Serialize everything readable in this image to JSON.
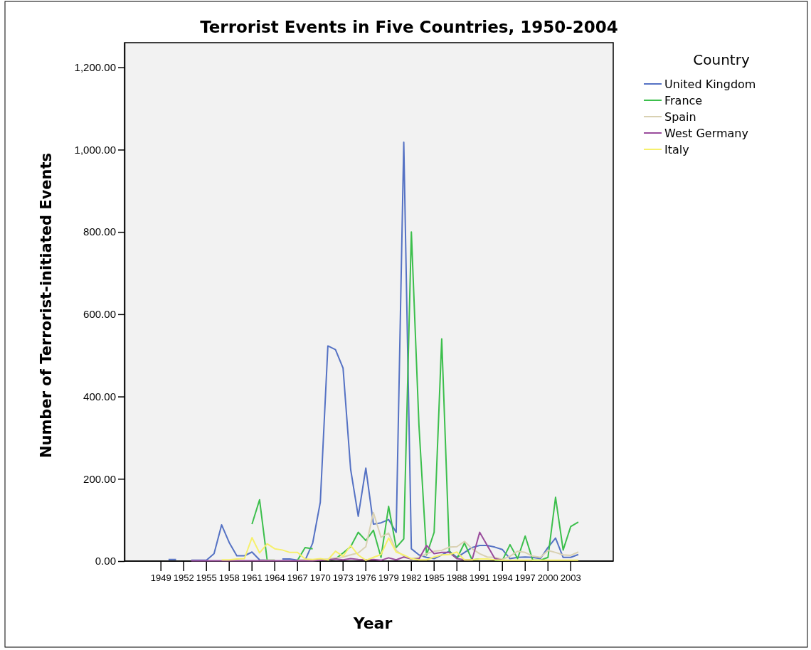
{
  "chart_data": {
    "type": "line",
    "title": "Terrorist Events in Five Countries, 1950-2004",
    "xlabel": "Year",
    "ylabel": "Number of Terrorist-initiated Events",
    "legend_title": "Country",
    "x": [
      1950,
      1951,
      1952,
      1953,
      1954,
      1955,
      1956,
      1957,
      1958,
      1959,
      1960,
      1961,
      1962,
      1963,
      1964,
      1965,
      1966,
      1967,
      1968,
      1969,
      1970,
      1971,
      1972,
      1973,
      1974,
      1975,
      1976,
      1977,
      1978,
      1979,
      1980,
      1981,
      1982,
      1983,
      1984,
      1985,
      1986,
      1987,
      1988,
      1989,
      1990,
      1991,
      1992,
      1993,
      1994,
      1995,
      1996,
      1997,
      1998,
      1999,
      2000,
      2001,
      2002,
      2003,
      2004
    ],
    "xlim": [
      1944.2,
      2008.6
    ],
    "xticks": [
      1949,
      1952,
      1955,
      1958,
      1961,
      1964,
      1967,
      1970,
      1973,
      1976,
      1979,
      1982,
      1985,
      1988,
      1991,
      1994,
      1997,
      2000,
      2003
    ],
    "ylim": [
      0,
      1260
    ],
    "yticks": [
      {
        "value": 0,
        "label": "0.00"
      },
      {
        "value": 200,
        "label": "200.00"
      },
      {
        "value": 400,
        "label": "400.00"
      },
      {
        "value": 600,
        "label": "600.00"
      },
      {
        "value": 800,
        "label": "800.00"
      },
      {
        "value": 1000,
        "label": "1,000.00"
      },
      {
        "value": 1200,
        "label": "1,200.00"
      }
    ],
    "grid": false,
    "legend": "right",
    "marker": "none",
    "line_style": "solid",
    "series": [
      {
        "name": "United Kingdom",
        "color": "#5572c4",
        "values": [
          4,
          4,
          null,
          2,
          2,
          2,
          18,
          88,
          45,
          13,
          13,
          22,
          3,
          2,
          null,
          5,
          5,
          2,
          2,
          44,
          143,
          523,
          514,
          469,
          223,
          109,
          226,
          90,
          93,
          101,
          70,
          1018,
          30,
          15,
          9,
          6,
          15,
          24,
          9,
          21,
          33,
          38,
          38,
          34,
          28,
          6,
          9,
          10,
          9,
          6,
          33,
          56,
          9,
          9,
          16
        ]
      },
      {
        "name": "France",
        "color": "#3cbf4c",
        "values": [
          null,
          null,
          null,
          null,
          null,
          null,
          null,
          null,
          null,
          null,
          null,
          90,
          149,
          2,
          2,
          null,
          null,
          2,
          33,
          30,
          null,
          2,
          5,
          20,
          35,
          70,
          50,
          75,
          9,
          133,
          33,
          54,
          800,
          330,
          15,
          70,
          540,
          24,
          6,
          44,
          3,
          5,
          null,
          2,
          2,
          40,
          6,
          61,
          2,
          2,
          9,
          155,
          27,
          84,
          95
        ]
      },
      {
        "name": "Spain",
        "color": "#d9d1b2",
        "values": [
          null,
          null,
          null,
          null,
          null,
          null,
          null,
          null,
          null,
          null,
          null,
          null,
          2,
          2,
          2,
          null,
          null,
          2,
          3,
          3,
          3,
          5,
          8,
          10,
          15,
          20,
          35,
          118,
          58,
          68,
          26,
          12,
          6,
          9,
          18,
          24,
          26,
          34,
          35,
          48,
          30,
          18,
          10,
          9,
          4,
          12,
          24,
          21,
          12,
          9,
          26,
          21,
          15,
          14,
          22
        ]
      },
      {
        "name": "West Germany",
        "color": "#9a4c9c",
        "values": [
          null,
          null,
          null,
          1,
          1,
          1,
          1,
          1,
          1,
          1,
          1,
          1,
          1,
          1,
          1,
          1,
          1,
          1,
          1,
          1,
          2,
          3,
          5,
          3,
          6,
          4,
          3,
          4,
          2,
          8,
          3,
          10,
          5,
          5,
          38,
          18,
          21,
          21,
          6,
          3,
          3,
          70,
          38,
          6,
          2,
          null,
          null,
          null,
          null,
          null,
          null,
          null,
          null,
          null,
          null
        ]
      },
      {
        "name": "Italy",
        "color": "#f6f06c",
        "values": [
          null,
          null,
          null,
          null,
          null,
          null,
          null,
          3,
          3,
          5,
          6,
          57,
          20,
          42,
          30,
          27,
          21,
          21,
          5,
          4,
          6,
          3,
          24,
          12,
          38,
          15,
          2,
          9,
          16,
          56,
          22,
          15,
          6,
          3,
          3,
          10,
          15,
          16,
          22,
          3,
          3,
          5,
          5,
          3,
          2,
          2,
          2,
          2,
          2,
          2,
          2,
          2,
          2,
          2,
          2
        ]
      }
    ]
  }
}
